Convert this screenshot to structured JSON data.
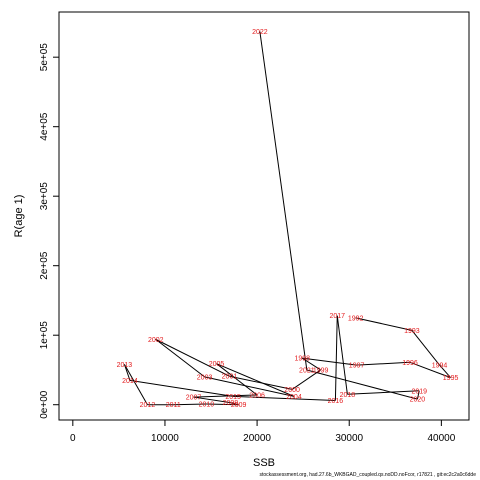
{
  "chart_data": {
    "type": "line",
    "title": "",
    "xlabel": "SSB",
    "ylabel": "R(age 1)",
    "xlim": [
      -1500,
      43000
    ],
    "ylim": [
      -22000,
      565000
    ],
    "x_ticks": [
      {
        "value": 0,
        "label": "0"
      },
      {
        "value": 10000,
        "label": "10000"
      },
      {
        "value": 20000,
        "label": "20000"
      },
      {
        "value": 30000,
        "label": "30000"
      },
      {
        "value": 40000,
        "label": "40000"
      }
    ],
    "y_ticks": [
      {
        "value": 0,
        "label": "0e+00"
      },
      {
        "value": 100000,
        "label": "1e+05"
      },
      {
        "value": 200000,
        "label": "2e+05"
      },
      {
        "value": 300000,
        "label": "3e+05"
      },
      {
        "value": 400000,
        "label": "4e+05"
      },
      {
        "value": 500000,
        "label": "5e+05"
      }
    ],
    "grid": false,
    "line_color": "#000000",
    "label_color": "#e31a1c",
    "points": [
      {
        "year": "1992",
        "x": 30700,
        "y": 125000
      },
      {
        "year": "1993",
        "x": 36800,
        "y": 107000
      },
      {
        "year": "1994",
        "x": 39800,
        "y": 57000
      },
      {
        "year": "1995",
        "x": 41000,
        "y": 39000
      },
      {
        "year": "1996",
        "x": 36600,
        "y": 61000
      },
      {
        "year": "1997",
        "x": 30800,
        "y": 57000
      },
      {
        "year": "1998",
        "x": 24900,
        "y": 67000
      },
      {
        "year": "1999",
        "x": 26900,
        "y": 50000
      },
      {
        "year": "2000",
        "x": 23800,
        "y": 22000
      },
      {
        "year": "2001",
        "x": 17000,
        "y": 41000
      },
      {
        "year": "2002",
        "x": 9000,
        "y": 94000
      },
      {
        "year": "2003",
        "x": 14300,
        "y": 40000
      },
      {
        "year": "2004",
        "x": 24000,
        "y": 12000
      },
      {
        "year": "2005",
        "x": 15600,
        "y": 59000
      },
      {
        "year": "2006",
        "x": 20000,
        "y": 14000
      },
      {
        "year": "2007",
        "x": 13100,
        "y": 11000
      },
      {
        "year": "2008",
        "x": 17100,
        "y": 3000
      },
      {
        "year": "2009",
        "x": 18000,
        "y": 0
      },
      {
        "year": "2010",
        "x": 14500,
        "y": 1000
      },
      {
        "year": "2011",
        "x": 10900,
        "y": 0
      },
      {
        "year": "2012",
        "x": 8100,
        "y": 0
      },
      {
        "year": "2013",
        "x": 5600,
        "y": 58000
      },
      {
        "year": "2014",
        "x": 6200,
        "y": 35000
      },
      {
        "year": "2015",
        "x": 17400,
        "y": 12000
      },
      {
        "year": "2016",
        "x": 28500,
        "y": 6000
      },
      {
        "year": "2017",
        "x": 28700,
        "y": 128000
      },
      {
        "year": "2018",
        "x": 29800,
        "y": 15000
      },
      {
        "year": "2019",
        "x": 37600,
        "y": 20000
      },
      {
        "year": "2020",
        "x": 37400,
        "y": 8000
      },
      {
        "year": "2021",
        "x": 25400,
        "y": 50000
      },
      {
        "year": "2022",
        "x": 20300,
        "y": 537000
      }
    ]
  },
  "footer": {
    "text": "stockassessment.org, had.27.6b_WKBGAD_coupled.qs.noDD.noFcor, r17821 , git:ec2c2a0c6dde"
  }
}
